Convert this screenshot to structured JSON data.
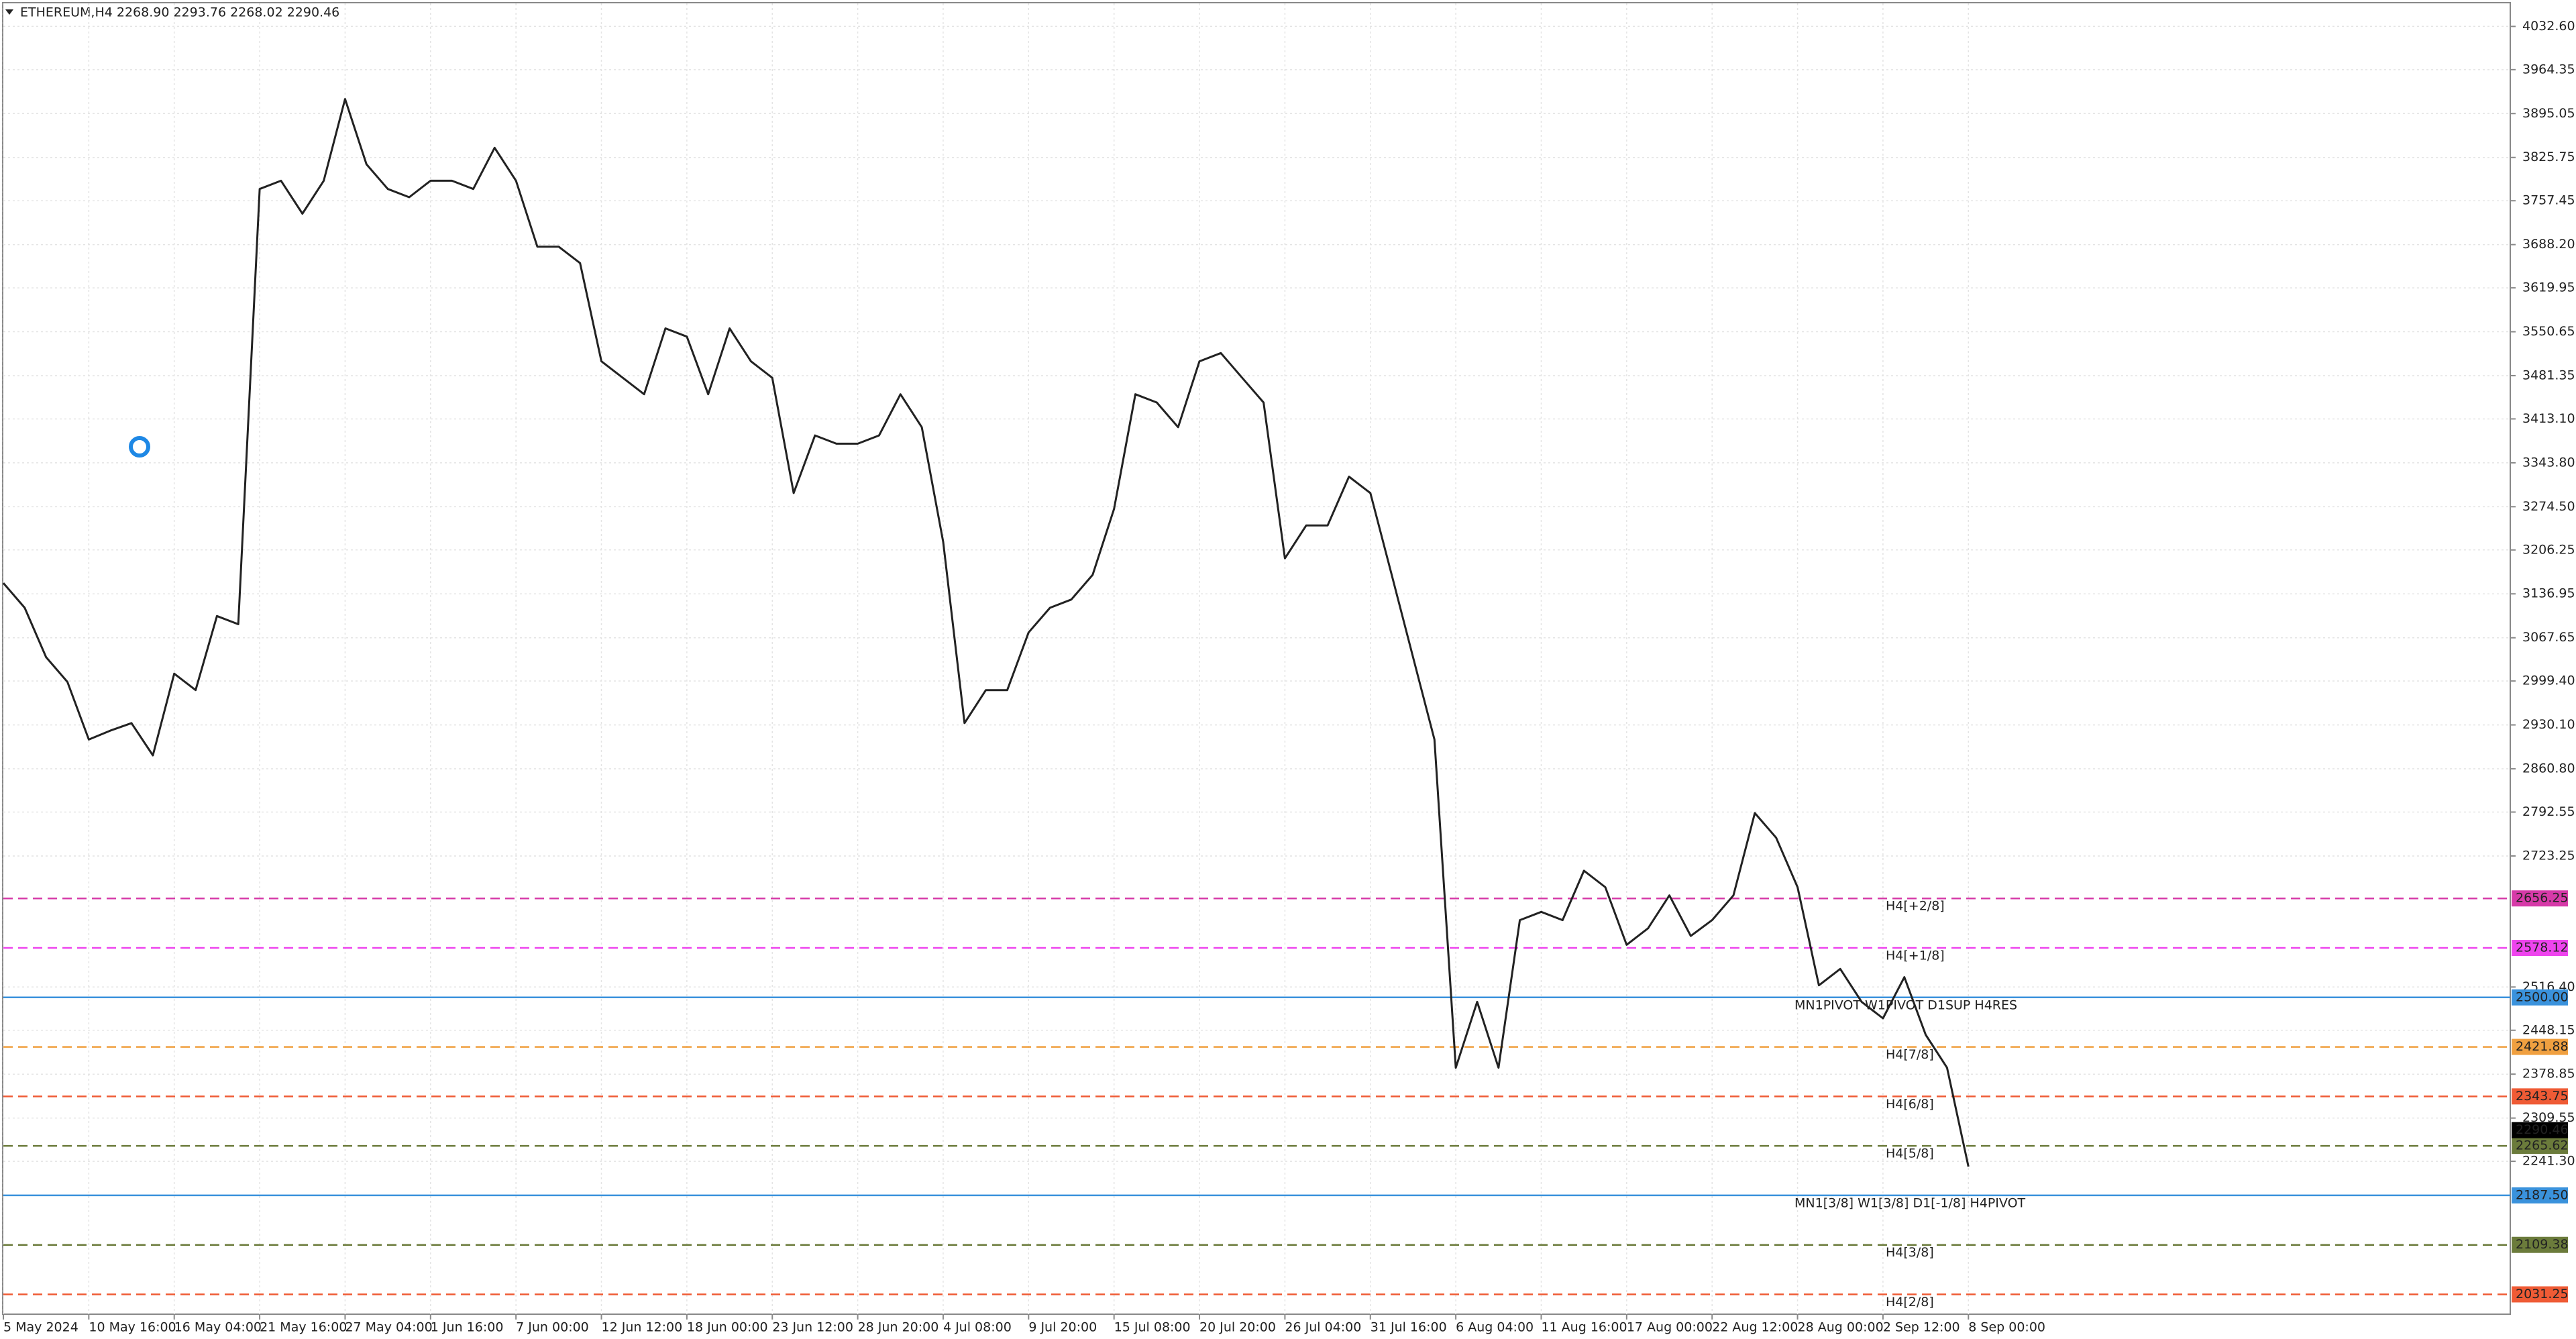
{
  "chart_data": {
    "type": "line",
    "title": "ETHEREUM,H4  2268.90 2293.76 2268.02 2290.46",
    "categories": [
      "5 May 2024",
      null,
      null,
      null,
      "10 May 16:00",
      null,
      null,
      null,
      "16 May 04:00",
      null,
      null,
      null,
      "21 May 16:00",
      null,
      null,
      null,
      "27 May 04:00",
      null,
      null,
      null,
      "1 Jun 16:00",
      null,
      null,
      null,
      "7 Jun 00:00",
      null,
      null,
      null,
      "12 Jun 12:00",
      null,
      null,
      null,
      "18 Jun 00:00",
      null,
      null,
      null,
      "23 Jun 12:00",
      null,
      null,
      null,
      "28 Jun 20:00",
      null,
      null,
      null,
      "4 Jul 08:00",
      null,
      null,
      null,
      "9 Jul 20:00",
      null,
      null,
      null,
      "15 Jul 08:00",
      null,
      null,
      null,
      "20 Jul 20:00",
      null,
      null,
      null,
      "26 Jul 04:00",
      null,
      null,
      null,
      "31 Jul 16:00",
      null,
      null,
      null,
      "6 Aug 04:00",
      null,
      null,
      null,
      "11 Aug 16:00",
      null,
      null,
      null,
      "17 Aug 00:00",
      null,
      null,
      null,
      "22 Aug 12:00",
      null,
      null,
      null,
      "28 Aug 00:00",
      null,
      null,
      null,
      "2 Sep 12:00",
      null,
      null,
      null,
      "8 Sep 00:00"
    ],
    "series": [
      {
        "color": "#222222",
        "values": [
          3154,
          3115,
          3037,
          2998,
          2907,
          2921,
          2933,
          2882,
          3011,
          2985,
          3102,
          3089,
          3776,
          3789,
          3737,
          3789,
          3918,
          3815,
          3776,
          3763,
          3789,
          3789,
          3776,
          3841,
          3789,
          3685,
          3685,
          3659,
          3504,
          3478,
          3452,
          3556,
          3543,
          3452,
          3556,
          3504,
          3478,
          3296,
          3387,
          3374,
          3374,
          3387,
          3452,
          3400,
          3219,
          2933,
          2985,
          2985,
          3076,
          3115,
          3128,
          3167,
          3271,
          3452,
          3439,
          3400,
          3504,
          3517,
          3478,
          3439,
          3193,
          3245,
          3245,
          3322,
          3296,
          3167,
          3037,
          2907,
          2389,
          2493,
          2389,
          2622,
          2635,
          2622,
          2700,
          2674,
          2583,
          2609,
          2661,
          2597,
          2622,
          2661,
          2791,
          2752,
          2674,
          2519,
          2545,
          2493,
          2467,
          2532,
          2441,
          2389,
          2233
        ]
      }
    ],
    "ylim": [
      2000,
      4069
    ],
    "yticks": [
      {
        "value": 4032.6,
        "label": "4032.60"
      },
      {
        "value": 3964.35,
        "label": "3964.35"
      },
      {
        "value": 3895.05,
        "label": "3895.05"
      },
      {
        "value": 3825.75,
        "label": "3825.75"
      },
      {
        "value": 3757.45,
        "label": "3757.45"
      },
      {
        "value": 3688.2,
        "label": "3688.20"
      },
      {
        "value": 3619.95,
        "label": "3619.95"
      },
      {
        "value": 3550.65,
        "label": "3550.65"
      },
      {
        "value": 3481.35,
        "label": "3481.35"
      },
      {
        "value": 3413.1,
        "label": "3413.10"
      },
      {
        "value": 3343.8,
        "label": "3343.80"
      },
      {
        "value": 3274.5,
        "label": "3274.50"
      },
      {
        "value": 3206.25,
        "label": "3206.25"
      },
      {
        "value": 3136.95,
        "label": "3136.95"
      },
      {
        "value": 3067.65,
        "label": "3067.65"
      },
      {
        "value": 2999.4,
        "label": "2999.40"
      },
      {
        "value": 2930.1,
        "label": "2930.10"
      },
      {
        "value": 2860.8,
        "label": "2860.80"
      },
      {
        "value": 2792.55,
        "label": "2792.55"
      },
      {
        "value": 2723.25,
        "label": "2723.25"
      },
      {
        "value": 2516.4,
        "label": "2516.40"
      },
      {
        "value": 2448.15,
        "label": "2448.15"
      },
      {
        "value": 2378.85,
        "label": "2378.85"
      },
      {
        "value": 2309.55,
        "label": "2309.55"
      },
      {
        "value": 2241.3,
        "label": "2241.30"
      }
    ],
    "grid": true,
    "levels": [
      {
        "label": "H4[+2/8]",
        "value": 2656.25,
        "color": "#d63aa8",
        "dashed": true
      },
      {
        "label": "H4[+1/8]",
        "value": 2578.12,
        "color": "#ee44ee",
        "dashed": true
      },
      {
        "label": "MN1PIVOT W1PIVOT D1SUP H4RES",
        "value": 2500,
        "value_label": "2500.00",
        "color": "#3a92dc",
        "dashed": false
      },
      {
        "label": "H4[7/8]",
        "value": 2421.88,
        "color": "#f0a040",
        "dashed": true
      },
      {
        "label": "H4[6/8]",
        "value": 2343.75,
        "color": "#ef5b35",
        "dashed": true
      },
      {
        "label": "H4[5/8]",
        "value": 2265.62,
        "color": "#6b7b3b",
        "dashed": true
      },
      {
        "label": "MN1[3/8] W1[3/8] D1[-1/8] H4PIVOT",
        "value": 2187.5,
        "value_label": "2187.50",
        "color": "#3a92dc",
        "dashed": false
      },
      {
        "label": "H4[3/8]",
        "value": 2109.38,
        "color": "#6b7b3b",
        "dashed": true
      },
      {
        "label": "H4[2/8]",
        "value": 2031.25,
        "color": "#ef5b35",
        "dashed": true
      }
    ],
    "last_price": 2290.46
  }
}
